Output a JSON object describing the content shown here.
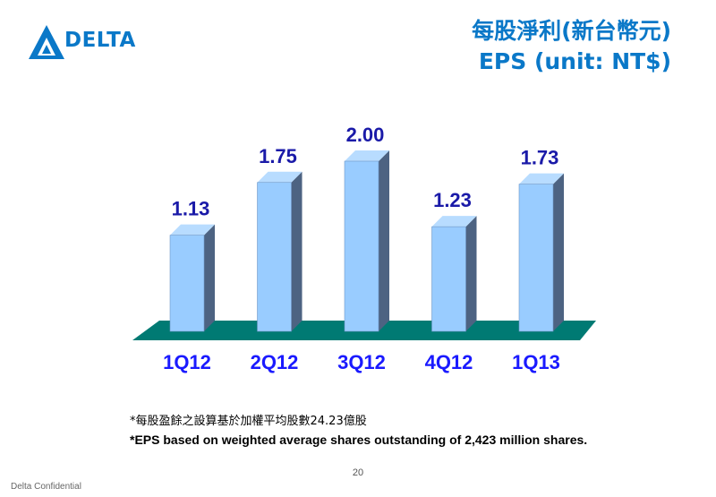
{
  "logo": {
    "text": "DELTA"
  },
  "title": {
    "line1": "每股淨利(新台幣元)",
    "line2": "EPS (unit: NT$)"
  },
  "chart_data": {
    "type": "bar",
    "categories": [
      "1Q12",
      "2Q12",
      "3Q12",
      "4Q12",
      "1Q13"
    ],
    "values": [
      1.13,
      1.75,
      2.0,
      1.23,
      1.73
    ],
    "value_labels": [
      "1.13",
      "1.75",
      "2.00",
      "1.23",
      "1.73"
    ],
    "title": "",
    "xlabel": "",
    "ylabel": "",
    "ylim": [
      0,
      2.0
    ],
    "grid": false,
    "colors": {
      "bar_front": "#99ccff",
      "bar_side": "#4d6382",
      "floor": "#007a73",
      "label": "#1a1aa8"
    }
  },
  "notes": {
    "line1": "*每股盈餘之設算基於加權平均股數24.23億股",
    "line2": "*EPS based on weighted average shares outstanding of 2,423 million shares."
  },
  "page_number": "20",
  "footer": "Delta Confidential"
}
